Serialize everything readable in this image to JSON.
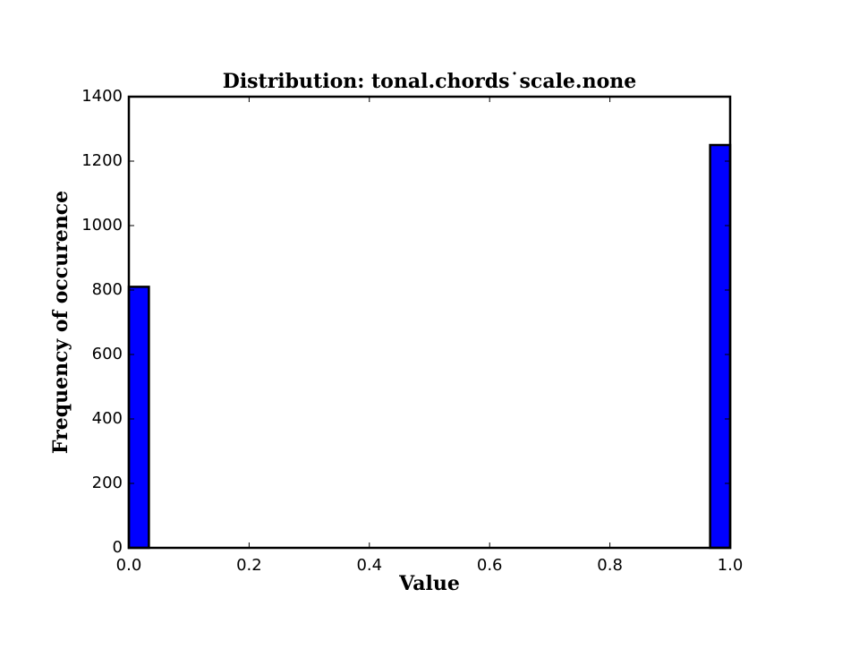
{
  "chart_data": {
    "type": "bar",
    "title": "Distribution: tonal.chords˙scale.none",
    "xlabel": "Value",
    "ylabel": "Frequency of occurence",
    "xlim": [
      0.0,
      1.0
    ],
    "ylim": [
      0,
      1400
    ],
    "xticks": [
      "0.0",
      "0.2",
      "0.4",
      "0.6",
      "0.8",
      "1.0"
    ],
    "xtick_values": [
      0.0,
      0.2,
      0.4,
      0.6,
      0.8,
      1.0
    ],
    "yticks": [
      "0",
      "200",
      "400",
      "600",
      "800",
      "1000",
      "1200",
      "1400"
    ],
    "ytick_values": [
      0,
      200,
      400,
      600,
      800,
      1000,
      1200,
      1400
    ],
    "bins": [
      {
        "x0": 0.0,
        "x1": 0.0333,
        "value": 810
      },
      {
        "x0": 0.9667,
        "x1": 1.0,
        "value": 1250
      }
    ],
    "bar_color": "#0000ff",
    "edge_color": "#000000",
    "grid": false,
    "legend": "none"
  }
}
